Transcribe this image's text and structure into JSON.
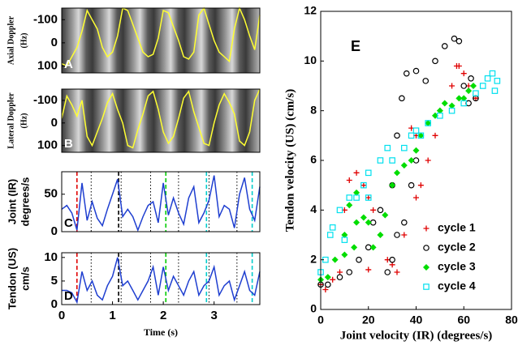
{
  "chart_data": [
    {
      "type": "line",
      "background": "spectrogram",
      "letter": "A",
      "ylabel": [
        "Axial Doppler",
        "(Hz)"
      ],
      "xlim": [
        0,
        3.9
      ],
      "ylim": [
        130,
        -150
      ],
      "yticks": [
        -100,
        0,
        100
      ],
      "x": [
        0,
        0.1,
        0.2,
        0.3,
        0.4,
        0.5,
        0.6,
        0.7,
        0.8,
        0.9,
        1,
        1.1,
        1.2,
        1.3,
        1.4,
        1.5,
        1.6,
        1.7,
        1.8,
        1.9,
        2,
        2.1,
        2.2,
        2.3,
        2.4,
        2.5,
        2.6,
        2.7,
        2.8,
        2.9,
        3,
        3.1,
        3.2,
        3.3,
        3.4,
        3.5,
        3.6,
        3.7,
        3.8,
        3.9
      ],
      "series": [
        {
          "color": "#ffff33",
          "values": [
            90,
            100,
            60,
            20,
            -50,
            -140,
            -100,
            -60,
            20,
            60,
            40,
            -30,
            -150,
            -140,
            -80,
            -20,
            40,
            60,
            50,
            -20,
            -140,
            -130,
            -70,
            -10,
            60,
            70,
            40,
            -120,
            -150,
            -80,
            -10,
            40,
            60,
            80,
            -60,
            -150,
            -100,
            -30,
            30,
            -120
          ]
        }
      ]
    },
    {
      "type": "line",
      "background": "spectrogram",
      "letter": "B",
      "ylabel": [
        "Lateral Doppler",
        "(Hz)"
      ],
      "xlim": [
        0,
        3.9
      ],
      "ylim": [
        130,
        -150
      ],
      "yticks": [
        -100,
        0,
        100
      ],
      "x": [
        0,
        0.1,
        0.2,
        0.3,
        0.4,
        0.5,
        0.6,
        0.7,
        0.8,
        0.9,
        1,
        1.1,
        1.2,
        1.3,
        1.4,
        1.5,
        1.6,
        1.7,
        1.8,
        1.9,
        2,
        2.1,
        2.2,
        2.3,
        2.4,
        2.5,
        2.6,
        2.7,
        2.8,
        2.9,
        3,
        3.1,
        3.2,
        3.3,
        3.4,
        3.5,
        3.6,
        3.7,
        3.8,
        3.9
      ],
      "series": [
        {
          "color": "#ffff33",
          "values": [
            -20,
            -120,
            -80,
            -30,
            -100,
            60,
            100,
            40,
            -20,
            -90,
            -130,
            -60,
            0,
            100,
            110,
            30,
            -40,
            -120,
            -140,
            -60,
            40,
            90,
            60,
            -20,
            -110,
            -140,
            -50,
            20,
            90,
            100,
            0,
            -80,
            -130,
            -90,
            -40,
            80,
            100,
            40,
            -100,
            -150
          ]
        }
      ]
    },
    {
      "type": "line",
      "background": "white",
      "letter": "C",
      "ylabel": [
        "Joint (IR)",
        "degrees/s"
      ],
      "xlim": [
        0,
        3.9
      ],
      "ylim": [
        0,
        80
      ],
      "yticks": [
        0,
        50
      ],
      "vlines": [
        {
          "x": 0.3,
          "color": "#e00000"
        },
        {
          "x": 1.12,
          "color": "#000000"
        },
        {
          "x": 2.05,
          "color": "#00cc00"
        },
        {
          "x": 2.85,
          "color": "#00cccc"
        },
        {
          "x": 3.75,
          "color": "#00cccc"
        }
      ],
      "dotted_x": [
        0.58,
        1.17,
        1.75,
        2.3,
        2.9,
        3.45
      ],
      "x": [
        0,
        0.1,
        0.2,
        0.3,
        0.4,
        0.5,
        0.6,
        0.7,
        0.8,
        0.9,
        1,
        1.1,
        1.2,
        1.3,
        1.4,
        1.5,
        1.6,
        1.7,
        1.8,
        1.9,
        2,
        2.1,
        2.2,
        2.3,
        2.4,
        2.5,
        2.6,
        2.7,
        2.8,
        2.9,
        3,
        3.1,
        3.2,
        3.3,
        3.4,
        3.5,
        3.6,
        3.7,
        3.8,
        3.9
      ],
      "series": [
        {
          "color": "#1f3fd0",
          "values": [
            30,
            35,
            25,
            2,
            65,
            15,
            40,
            18,
            8,
            30,
            50,
            70,
            20,
            30,
            20,
            2,
            20,
            35,
            40,
            12,
            65,
            22,
            45,
            25,
            10,
            45,
            60,
            12,
            25,
            42,
            75,
            20,
            35,
            30,
            5,
            50,
            72,
            30,
            15,
            60
          ]
        }
      ]
    },
    {
      "type": "line",
      "background": "white",
      "letter": "D",
      "ylabel": [
        "Tendon (US)",
        "cm/s"
      ],
      "xlabel": "Time (s)",
      "xlim": [
        0,
        3.9
      ],
      "ylim": [
        0,
        11
      ],
      "yticks": [
        0,
        5,
        10
      ],
      "xticks": [
        0,
        1,
        2,
        3
      ],
      "vlines": [
        {
          "x": 0.3,
          "color": "#e00000"
        },
        {
          "x": 1.12,
          "color": "#000000"
        },
        {
          "x": 2.05,
          "color": "#00cc00"
        },
        {
          "x": 2.85,
          "color": "#00cccc"
        },
        {
          "x": 3.75,
          "color": "#00cccc"
        }
      ],
      "dotted_x": [
        0.58,
        1.17,
        1.75,
        2.3,
        2.9,
        3.45
      ],
      "x": [
        0,
        0.1,
        0.2,
        0.3,
        0.4,
        0.5,
        0.6,
        0.7,
        0.8,
        0.9,
        1,
        1.1,
        1.2,
        1.3,
        1.4,
        1.5,
        1.6,
        1.7,
        1.8,
        1.9,
        2,
        2.1,
        2.2,
        2.3,
        2.4,
        2.5,
        2.6,
        2.7,
        2.8,
        2.9,
        3,
        3.1,
        3.2,
        3.3,
        3.4,
        3.5,
        3.6,
        3.7,
        3.8,
        3.9
      ],
      "series": [
        {
          "color": "#1f3fd0",
          "values": [
            3,
            3,
            2.5,
            0.5,
            7,
            3,
            5,
            2,
            1,
            4,
            6,
            10,
            4,
            5,
            3,
            1,
            3,
            5,
            8,
            2,
            8,
            3,
            6,
            4,
            2,
            5,
            7,
            2,
            4,
            5,
            8,
            2,
            4,
            5,
            1,
            4,
            7,
            3,
            2,
            7
          ]
        }
      ]
    },
    {
      "type": "scatter",
      "letter": "E",
      "xlabel": "Joint velocity (IR) (degrees/s)",
      "ylabel": "Tendon velocity (US) (cm/s)",
      "xlim": [
        0,
        80
      ],
      "ylim": [
        0,
        12
      ],
      "xticks": [
        0,
        20,
        40,
        60,
        80
      ],
      "yticks": [
        0,
        2,
        4,
        6,
        8,
        10,
        12
      ],
      "legend": "lower right",
      "series": [
        {
          "name": "cycle 1",
          "color": "#e00000",
          "marker": "plus",
          "x": [
            0,
            2,
            5,
            8,
            10,
            12,
            15,
            18,
            20,
            22,
            25,
            28,
            30,
            32,
            35,
            38,
            40,
            42,
            45,
            48,
            50,
            55,
            57,
            60,
            62,
            65,
            58,
            40,
            20
          ],
          "values": [
            1,
            0.8,
            1.2,
            1.5,
            4,
            5.2,
            5.5,
            5,
            4.5,
            4,
            3,
            2,
            1.8,
            1.5,
            3,
            7.3,
            7,
            5,
            6,
            7,
            8,
            9,
            9.8,
            9.5,
            9,
            8.5,
            9.8,
            4.5,
            1.6
          ]
        },
        {
          "name": "cycle 2",
          "color": "#000000",
          "marker": "circle",
          "x": [
            0,
            3,
            8,
            12,
            16,
            20,
            22,
            25,
            30,
            32,
            34,
            36,
            40,
            44,
            48,
            52,
            56,
            58,
            60,
            62,
            63,
            65,
            28,
            30,
            32,
            35,
            38,
            40
          ],
          "values": [
            1,
            1,
            1.3,
            1.5,
            2,
            2.5,
            3.5,
            4,
            5,
            7,
            8.5,
            9.5,
            9.6,
            9.2,
            10,
            10.6,
            10.9,
            10.8,
            9,
            8.3,
            9.3,
            8.5,
            1.5,
            2,
            3,
            3.5,
            5,
            6
          ]
        },
        {
          "name": "cycle 3",
          "color": "#00dd00",
          "marker": "diamond",
          "x": [
            0,
            3,
            6,
            10,
            14,
            15,
            18,
            20,
            22,
            25,
            27,
            30,
            32,
            35,
            38,
            40,
            42,
            45,
            48,
            50,
            52,
            55,
            58,
            60,
            62,
            64,
            10,
            12,
            15
          ],
          "values": [
            1.2,
            1.3,
            2,
            2.2,
            2.5,
            3.5,
            3.7,
            3.5,
            2.5,
            3,
            3.8,
            5,
            5.5,
            5.8,
            6,
            6.4,
            7,
            7.5,
            7.8,
            8,
            8.3,
            8.2,
            8.5,
            8.5,
            8.8,
            9,
            3,
            4.2,
            4.7
          ]
        },
        {
          "name": "cycle 4",
          "color": "#00e0ee",
          "marker": "square",
          "x": [
            0,
            2,
            4,
            5,
            8,
            12,
            15,
            18,
            20,
            25,
            28,
            30,
            35,
            38,
            40,
            42,
            45,
            50,
            55,
            60,
            65,
            68,
            70,
            72,
            74,
            73,
            20,
            10
          ],
          "values": [
            1.5,
            2,
            3,
            3.3,
            4,
            4.5,
            4.5,
            5,
            5.5,
            6,
            6.5,
            6,
            6.5,
            7,
            7.2,
            7,
            7.5,
            7.8,
            8,
            8.3,
            8.7,
            9,
            9.3,
            9.5,
            9.2,
            8.8,
            4.5,
            2.8
          ]
        }
      ]
    }
  ]
}
